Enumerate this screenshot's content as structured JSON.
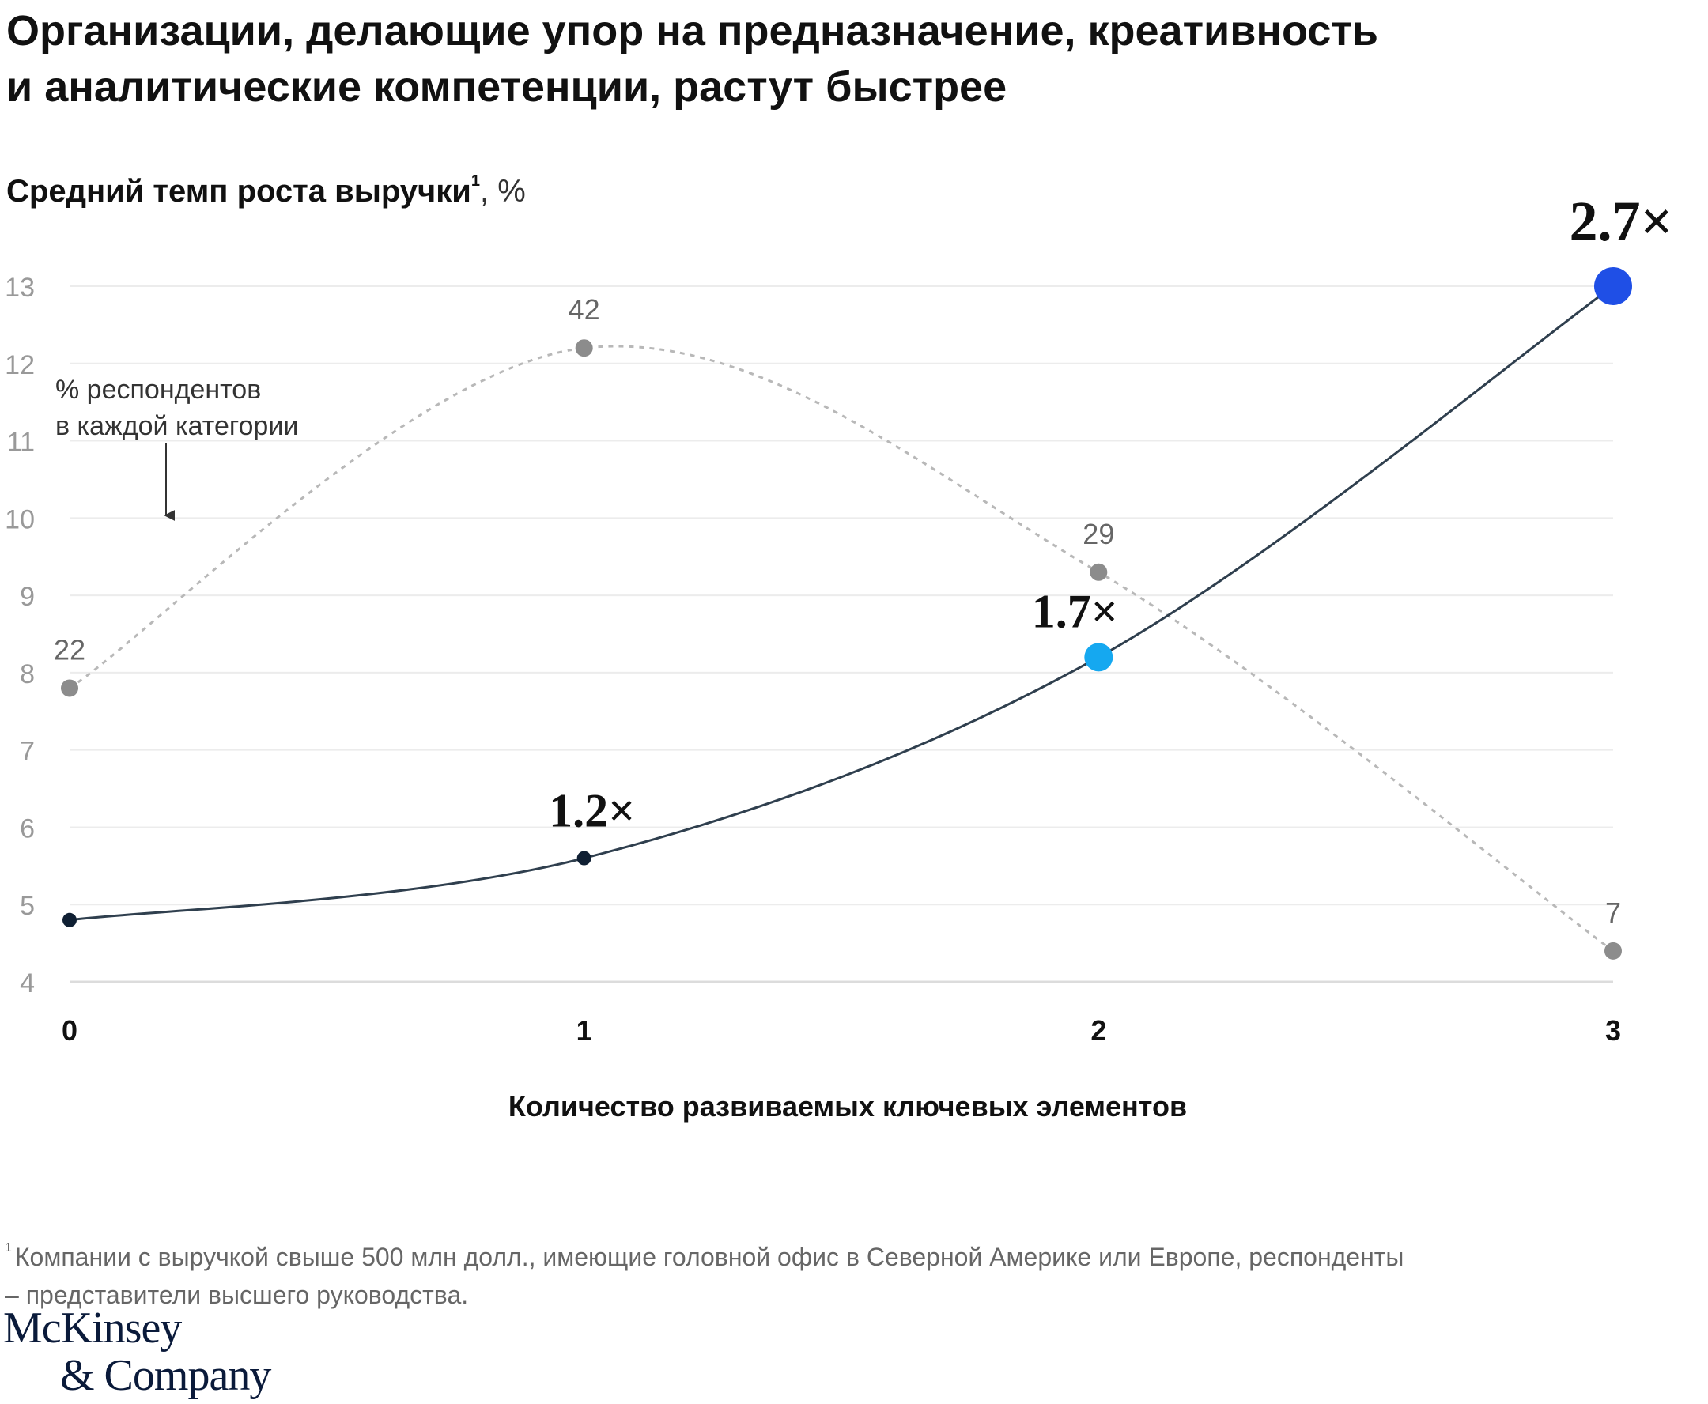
{
  "title": {
    "line1": "Организации, делающие упор на предназначение, креативность",
    "line2": "и аналитические компетенции, растут быстрее"
  },
  "y_axis_title": {
    "text": "Средний темп роста выручки",
    "footnote_marker": "1",
    "unit": ", %"
  },
  "annotation": {
    "line1": "% респондентов",
    "line2": "в каждой категории"
  },
  "footnote": {
    "marker": "1",
    "text": "Компании с выручкой свыше 500 млн долл., имеющие головной офис в Северной Америке или Европе, респонденты – представители высшего руководства."
  },
  "logo": {
    "line1": "McKinsey",
    "line2": "& Company"
  },
  "colors": {
    "growth_line": "#2f3f4e",
    "point_dark": "#0f1f33",
    "point_light_blue": "#15a8f0",
    "point_blue": "#1f4fe6",
    "respondents_line": "#b8b8b8",
    "respondents_point": "#8c8c8c",
    "gridline": "#ececec",
    "axis_line": "#dcdcdc"
  },
  "chart_data": {
    "type": "line",
    "xlabel": "Количество развиваемых ключевых элементов",
    "ylabel": "Средний темп роста выручки, %",
    "ylim": [
      4,
      13
    ],
    "yticks": [
      13,
      12,
      11,
      10,
      9,
      8,
      7,
      6,
      5,
      4
    ],
    "x": [
      0,
      1,
      2,
      3
    ],
    "xticks": [
      "0",
      "1",
      "2",
      "3"
    ],
    "grid": true,
    "series": [
      {
        "values": [
          4.8,
          5.6,
          8.2,
          13.0
        ],
        "point_labels": [
          "",
          "1.2×",
          "1.7×",
          "2.7×"
        ]
      },
      {
        "style": "dotted",
        "plotted_at": [
          7.8,
          12.2,
          9.3,
          4.4
        ],
        "respondent_shares": [
          22,
          42,
          29,
          7
        ],
        "point_labels": [
          "22",
          "42",
          "29",
          "7"
        ]
      }
    ]
  }
}
